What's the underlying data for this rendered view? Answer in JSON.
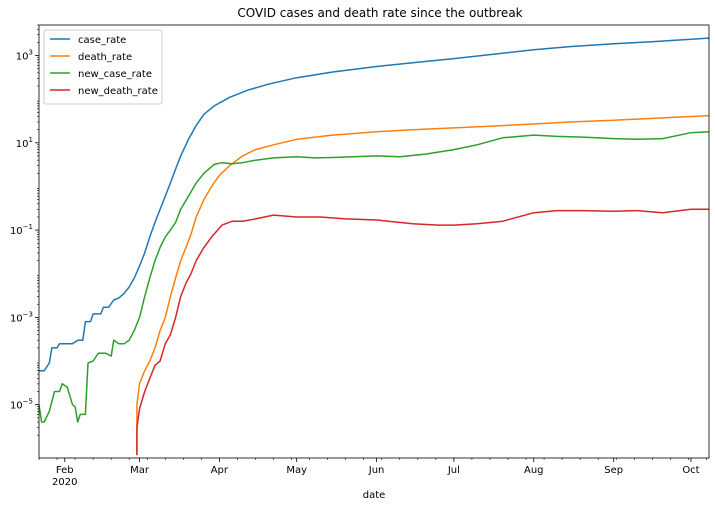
{
  "chart_data": {
    "type": "line",
    "title": "COVID cases and death rate since the outbreak",
    "xlabel": "date",
    "ylabel": "",
    "yscale": "log",
    "ylim": [
      6e-07,
      5000
    ],
    "xlim": [
      "2020-01-22",
      "2020-10-08"
    ],
    "legend_position": "top-left",
    "grid": false,
    "x_ticks": [
      {
        "date": "2020-02-01",
        "label": "Feb",
        "sublabel": "2020"
      },
      {
        "date": "2020-03-01",
        "label": "Mar"
      },
      {
        "date": "2020-04-01",
        "label": "Apr"
      },
      {
        "date": "2020-05-01",
        "label": "May"
      },
      {
        "date": "2020-06-01",
        "label": "Jun"
      },
      {
        "date": "2020-07-01",
        "label": "Jul"
      },
      {
        "date": "2020-08-01",
        "label": "Aug"
      },
      {
        "date": "2020-09-01",
        "label": "Sep"
      },
      {
        "date": "2020-10-01",
        "label": "Oct"
      }
    ],
    "y_ticks": [
      {
        "value": 1e-05,
        "base": "10",
        "exp": "−5"
      },
      {
        "value": 0.001,
        "base": "10",
        "exp": "−3"
      },
      {
        "value": 0.1,
        "base": "10",
        "exp": "−1"
      },
      {
        "value": 10,
        "base": "10",
        "exp": "1"
      },
      {
        "value": 1000,
        "base": "10",
        "exp": "3"
      }
    ],
    "series": [
      {
        "name": "case_rate",
        "color": "#1f77b4",
        "points": [
          [
            "2020-01-22",
            6e-05
          ],
          [
            "2020-01-24",
            6e-05
          ],
          [
            "2020-01-26",
            9e-05
          ],
          [
            "2020-01-27",
            0.0002
          ],
          [
            "2020-01-29",
            0.0002
          ],
          [
            "2020-01-30",
            0.00025
          ],
          [
            "2020-02-02",
            0.00025
          ],
          [
            "2020-02-04",
            0.00025
          ],
          [
            "2020-02-06",
            0.0003
          ],
          [
            "2020-02-08",
            0.0003
          ],
          [
            "2020-02-09",
            0.0008
          ],
          [
            "2020-02-11",
            0.0008
          ],
          [
            "2020-02-12",
            0.0012
          ],
          [
            "2020-02-15",
            0.0012
          ],
          [
            "2020-02-16",
            0.0017
          ],
          [
            "2020-02-18",
            0.0017
          ],
          [
            "2020-02-20",
            0.0025
          ],
          [
            "2020-02-22",
            0.0028
          ],
          [
            "2020-02-24",
            0.0035
          ],
          [
            "2020-02-26",
            0.005
          ],
          [
            "2020-02-28",
            0.008
          ],
          [
            "2020-03-01",
            0.015
          ],
          [
            "2020-03-03",
            0.03
          ],
          [
            "2020-03-05",
            0.07
          ],
          [
            "2020-03-07",
            0.15
          ],
          [
            "2020-03-09",
            0.3
          ],
          [
            "2020-03-11",
            0.6
          ],
          [
            "2020-03-13",
            1.2
          ],
          [
            "2020-03-15",
            2.5
          ],
          [
            "2020-03-17",
            5
          ],
          [
            "2020-03-20",
            12
          ],
          [
            "2020-03-23",
            25
          ],
          [
            "2020-03-26",
            45
          ],
          [
            "2020-03-30",
            70
          ],
          [
            "2020-04-05",
            110
          ],
          [
            "2020-04-12",
            160
          ],
          [
            "2020-04-20",
            220
          ],
          [
            "2020-05-01",
            310
          ],
          [
            "2020-05-15",
            420
          ],
          [
            "2020-06-01",
            560
          ],
          [
            "2020-06-15",
            680
          ],
          [
            "2020-07-01",
            850
          ],
          [
            "2020-07-15",
            1050
          ],
          [
            "2020-08-01",
            1350
          ],
          [
            "2020-08-15",
            1600
          ],
          [
            "2020-09-01",
            1850
          ],
          [
            "2020-09-15",
            2050
          ],
          [
            "2020-10-01",
            2350
          ],
          [
            "2020-10-08",
            2500
          ]
        ]
      },
      {
        "name": "death_rate",
        "color": "#ff7f0e",
        "points": [
          [
            "2020-02-29",
            7e-07
          ],
          [
            "2020-02-29",
            1e-05
          ],
          [
            "2020-03-01",
            3e-05
          ],
          [
            "2020-03-03",
            6e-05
          ],
          [
            "2020-03-05",
            0.0001
          ],
          [
            "2020-03-07",
            0.0002
          ],
          [
            "2020-03-09",
            0.0005
          ],
          [
            "2020-03-11",
            0.001
          ],
          [
            "2020-03-13",
            0.003
          ],
          [
            "2020-03-15",
            0.008
          ],
          [
            "2020-03-17",
            0.02
          ],
          [
            "2020-03-19",
            0.04
          ],
          [
            "2020-03-21",
            0.08
          ],
          [
            "2020-03-23",
            0.2
          ],
          [
            "2020-03-26",
            0.5
          ],
          [
            "2020-03-29",
            1
          ],
          [
            "2020-04-01",
            1.8
          ],
          [
            "2020-04-05",
            3
          ],
          [
            "2020-04-10",
            5
          ],
          [
            "2020-04-15",
            7
          ],
          [
            "2020-04-22",
            9
          ],
          [
            "2020-05-01",
            12
          ],
          [
            "2020-05-15",
            15
          ],
          [
            "2020-06-01",
            18
          ],
          [
            "2020-06-15",
            20
          ],
          [
            "2020-07-01",
            22
          ],
          [
            "2020-07-15",
            24
          ],
          [
            "2020-08-01",
            27
          ],
          [
            "2020-08-15",
            30
          ],
          [
            "2020-09-01",
            33
          ],
          [
            "2020-09-15",
            36
          ],
          [
            "2020-10-01",
            40
          ],
          [
            "2020-10-08",
            42
          ]
        ]
      },
      {
        "name": "new_case_rate",
        "color": "#2ca02c",
        "points": [
          [
            "2020-01-22",
            1e-05
          ],
          [
            "2020-01-23",
            4e-06
          ],
          [
            "2020-01-24",
            4e-06
          ],
          [
            "2020-01-26",
            7e-06
          ],
          [
            "2020-01-28",
            2e-05
          ],
          [
            "2020-01-30",
            2e-05
          ],
          [
            "2020-01-31",
            3e-05
          ],
          [
            "2020-02-02",
            2.5e-05
          ],
          [
            "2020-02-04",
            1e-05
          ],
          [
            "2020-02-05",
            9e-06
          ],
          [
            "2020-02-06",
            4e-06
          ],
          [
            "2020-02-07",
            6e-06
          ],
          [
            "2020-02-09",
            6e-06
          ],
          [
            "2020-02-10",
            9e-05
          ],
          [
            "2020-02-12",
            0.0001
          ],
          [
            "2020-02-14",
            0.00015
          ],
          [
            "2020-02-17",
            0.00015
          ],
          [
            "2020-02-19",
            0.00013
          ],
          [
            "2020-02-20",
            0.0003
          ],
          [
            "2020-02-22",
            0.00025
          ],
          [
            "2020-02-24",
            0.00025
          ],
          [
            "2020-02-26",
            0.0003
          ],
          [
            "2020-02-28",
            0.0005
          ],
          [
            "2020-03-01",
            0.001
          ],
          [
            "2020-03-03",
            0.003
          ],
          [
            "2020-03-05",
            0.008
          ],
          [
            "2020-03-07",
            0.02
          ],
          [
            "2020-03-09",
            0.04
          ],
          [
            "2020-03-11",
            0.07
          ],
          [
            "2020-03-13",
            0.1
          ],
          [
            "2020-03-15",
            0.15
          ],
          [
            "2020-03-17",
            0.3
          ],
          [
            "2020-03-20",
            0.6
          ],
          [
            "2020-03-23",
            1.2
          ],
          [
            "2020-03-26",
            2
          ],
          [
            "2020-03-30",
            3.2
          ],
          [
            "2020-04-02",
            3.5
          ],
          [
            "2020-04-06",
            3.3
          ],
          [
            "2020-04-10",
            3.5
          ],
          [
            "2020-04-15",
            4
          ],
          [
            "2020-04-22",
            4.5
          ],
          [
            "2020-05-01",
            4.8
          ],
          [
            "2020-05-08",
            4.5
          ],
          [
            "2020-05-15",
            4.6
          ],
          [
            "2020-06-01",
            5
          ],
          [
            "2020-06-10",
            4.8
          ],
          [
            "2020-06-20",
            5.5
          ],
          [
            "2020-07-01",
            7
          ],
          [
            "2020-07-10",
            9
          ],
          [
            "2020-07-20",
            13
          ],
          [
            "2020-08-01",
            15
          ],
          [
            "2020-08-10",
            14
          ],
          [
            "2020-08-20",
            13.5
          ],
          [
            "2020-09-01",
            12.5
          ],
          [
            "2020-09-10",
            12
          ],
          [
            "2020-09-20",
            12.5
          ],
          [
            "2020-10-01",
            17
          ],
          [
            "2020-10-08",
            18
          ]
        ]
      },
      {
        "name": "new_death_rate",
        "color": "#d62728",
        "points": [
          [
            "2020-02-29",
            7e-07
          ],
          [
            "2020-02-29",
            3e-06
          ],
          [
            "2020-03-01",
            8e-06
          ],
          [
            "2020-03-03",
            2e-05
          ],
          [
            "2020-03-05",
            4e-05
          ],
          [
            "2020-03-07",
            8e-05
          ],
          [
            "2020-03-09",
            0.0001
          ],
          [
            "2020-03-11",
            0.00025
          ],
          [
            "2020-03-13",
            0.0004
          ],
          [
            "2020-03-15",
            0.001
          ],
          [
            "2020-03-17",
            0.003
          ],
          [
            "2020-03-19",
            0.006
          ],
          [
            "2020-03-21",
            0.01
          ],
          [
            "2020-03-23",
            0.02
          ],
          [
            "2020-03-26",
            0.04
          ],
          [
            "2020-03-29",
            0.07
          ],
          [
            "2020-04-02",
            0.13
          ],
          [
            "2020-04-06",
            0.16
          ],
          [
            "2020-04-10",
            0.16
          ],
          [
            "2020-04-15",
            0.18
          ],
          [
            "2020-04-22",
            0.22
          ],
          [
            "2020-05-01",
            0.2
          ],
          [
            "2020-05-10",
            0.2
          ],
          [
            "2020-05-20",
            0.18
          ],
          [
            "2020-06-01",
            0.17
          ],
          [
            "2020-06-15",
            0.14
          ],
          [
            "2020-06-25",
            0.13
          ],
          [
            "2020-07-01",
            0.13
          ],
          [
            "2020-07-10",
            0.14
          ],
          [
            "2020-07-20",
            0.16
          ],
          [
            "2020-08-01",
            0.25
          ],
          [
            "2020-08-10",
            0.28
          ],
          [
            "2020-08-20",
            0.28
          ],
          [
            "2020-09-01",
            0.27
          ],
          [
            "2020-09-10",
            0.28
          ],
          [
            "2020-09-20",
            0.25
          ],
          [
            "2020-10-01",
            0.3
          ],
          [
            "2020-10-08",
            0.3
          ]
        ]
      }
    ]
  }
}
